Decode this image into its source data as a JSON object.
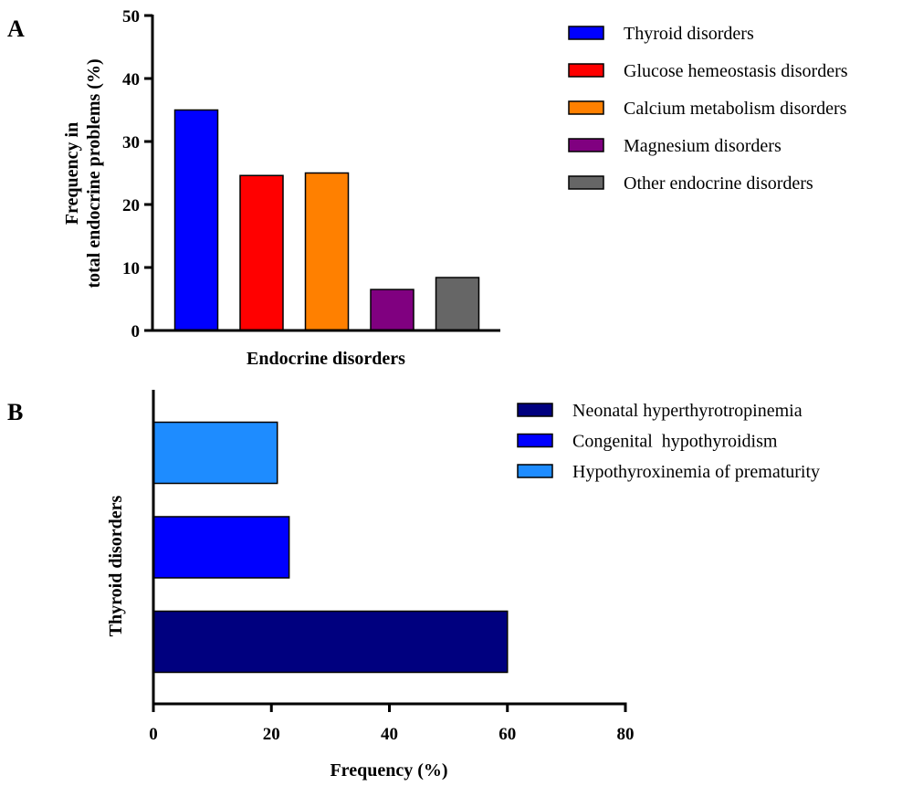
{
  "chart_data": [
    {
      "panel": "A",
      "type": "bar",
      "categories": [
        "Thyroid disorders",
        "Glucose hemeostasis disorders",
        "Calcium metabolism disorders",
        "Magnesium disorders",
        "Other endocrine disorders"
      ],
      "values": [
        35,
        24.6,
        25,
        6.5,
        8.4
      ],
      "colors": [
        "#0000ff",
        "#ff0000",
        "#ff8000",
        "#800080",
        "#666666"
      ],
      "xlabel": "Endocrine disorders",
      "ylabel_lines": [
        "Frequency in",
        "total endocrine problems (%)"
      ],
      "ylim": [
        0,
        50
      ],
      "yticks": [
        0,
        10,
        20,
        30,
        40,
        50
      ],
      "grid": false,
      "legend_position": "right",
      "legend": [
        "Thyroid disorders",
        "Glucose hemeostasis disorders",
        "Calcium metabolism disorders",
        "Magnesium disorders",
        "Other endocrine disorders"
      ]
    },
    {
      "panel": "B",
      "type": "bar",
      "orientation": "horizontal",
      "categories": [
        "Neonatal hyperthyrotropinemia",
        "Congenital  hypothyroidism",
        "Hypothyroxinemia of prematurity"
      ],
      "values": [
        60,
        23,
        21
      ],
      "colors": [
        "#00007f",
        "#0000ff",
        "#1e8cff"
      ],
      "xlabel": "Frequency (%)",
      "ylabel": "Thyroid disorders",
      "xlim": [
        0,
        80
      ],
      "xticks": [
        0,
        20,
        40,
        60,
        80
      ],
      "grid": false,
      "legend_position": "top-right",
      "legend": [
        "Neonatal hyperthyrotropinemia",
        "Congenital  hypothyroidism",
        "Hypothyroxinemia of prematurity"
      ]
    }
  ]
}
